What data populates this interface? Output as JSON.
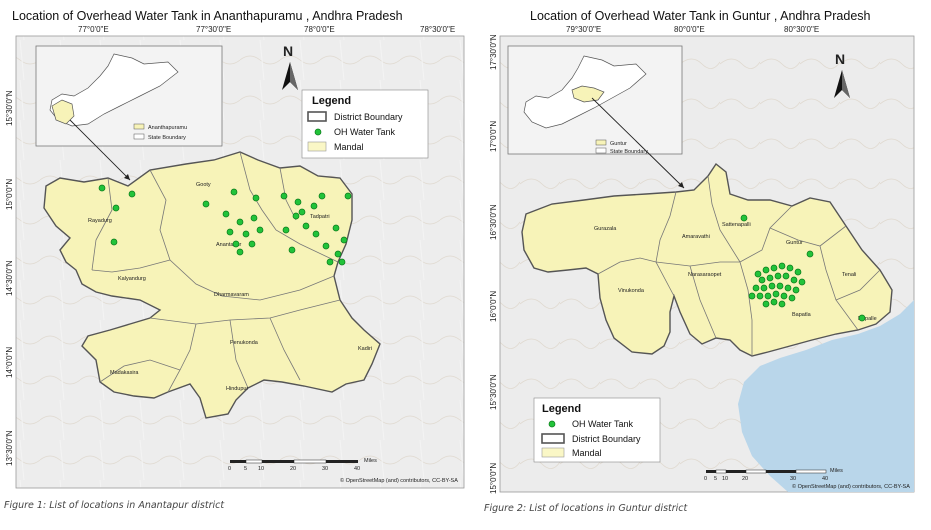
{
  "map1": {
    "title": "Location of Overhead Water Tank in Ananthapuramu , Andhra Pradesh",
    "caption": "Figure 1: List of locations in Anantapur district",
    "x_ticks": [
      "77°0'0\"E",
      "77°30'0\"E",
      "78°0'0\"E",
      "78°30'0\"E"
    ],
    "y_ticks": [
      "15°30'0\"N",
      "15°0'0\"N",
      "14°30'0\"N",
      "14°0'0\"N",
      "13°30'0\"N"
    ],
    "north": "N",
    "legend": {
      "title": "Legend",
      "items": [
        "District Boundary",
        "OH Water Tank",
        "Mandal"
      ]
    },
    "inset_legend": [
      "Ananthapuramu",
      "State Boundary"
    ],
    "places": [
      "Gooty",
      "Rayadurg",
      "Anantapur",
      "Kalyandurg",
      "Dharmavaram",
      "Penukonda",
      "Madakasira",
      "Hindupur",
      "Kadiri",
      "Tadpatri"
    ],
    "scale": {
      "ticks": [
        "0",
        "5",
        "10",
        "20",
        "30",
        "40"
      ],
      "unit": "Miles"
    },
    "attribution": "© OpenStreetMap (and) contributors, CC-BY-SA",
    "colors": {
      "district": "#f7f3b8",
      "border": "#6a6a6a",
      "tank": "#22c33a",
      "legend_mandal": "#faf7c6"
    }
  },
  "map2": {
    "title": "Location of Overhead Water Tank in Guntur , Andhra Pradesh",
    "caption": "Figure 2: List of locations in Guntur district",
    "x_ticks": [
      "79°30'0\"E",
      "80°0'0\"E",
      "80°30'0\"E"
    ],
    "y_ticks": [
      "17°30'0\"N",
      "17°0'0\"N",
      "16°30'0\"N",
      "16°0'0\"N",
      "15°30'0\"N",
      "15°0'0\"N"
    ],
    "north": "N",
    "legend": {
      "title": "Legend",
      "items": [
        "OH Water Tank",
        "District Boundary",
        "Mandal"
      ]
    },
    "inset_legend": [
      "Guntur",
      "State Boundary"
    ],
    "places": [
      "Gurazala",
      "Sattenapalli",
      "Guntur",
      "Narasaraopet",
      "Vinukonda",
      "Tenali",
      "Bapatla",
      "Repalle",
      "Amaravathi"
    ],
    "scale": {
      "ticks": [
        "0",
        "5",
        "10",
        "20",
        "30",
        "40"
      ],
      "unit": "Miles"
    },
    "attribution": "© OpenStreetMap (and) contributors, CC-BY-SA",
    "colors": {
      "district": "#f7f3b8",
      "sea": "#b9d6ea",
      "border": "#6a6a6a",
      "tank": "#22c33a"
    }
  }
}
